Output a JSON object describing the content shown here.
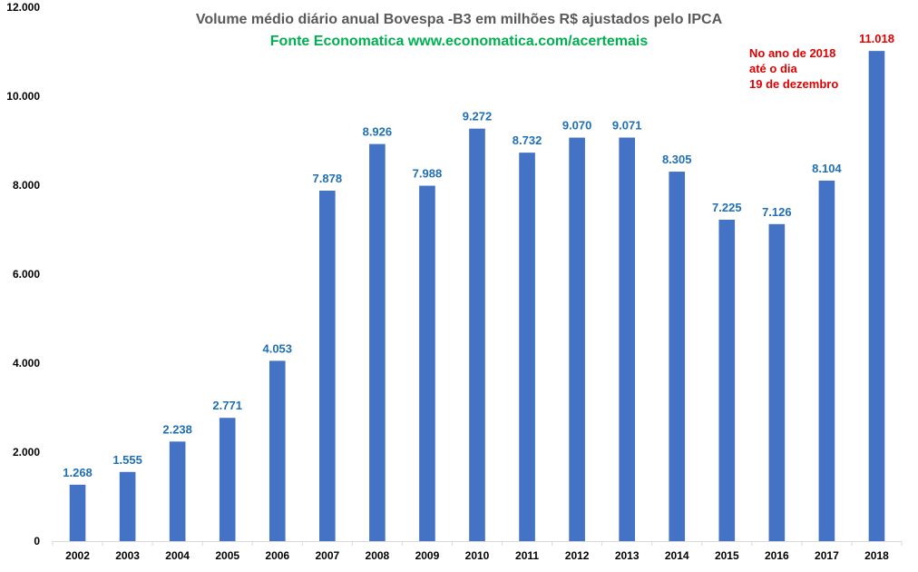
{
  "chart_data": {
    "type": "bar",
    "title": "Volume médio diário anual  Bovespa -B3 em milhões R$ ajustados pelo IPCA",
    "subtitle": "Fonte Economatica www.economatica.com/acertemais",
    "categories": [
      "2002",
      "2003",
      "2004",
      "2005",
      "2006",
      "2007",
      "2008",
      "2009",
      "2010",
      "2011",
      "2012",
      "2013",
      "2014",
      "2015",
      "2016",
      "2017",
      "2018"
    ],
    "values": [
      1268,
      1555,
      2238,
      2771,
      4053,
      7878,
      8926,
      7988,
      9272,
      8732,
      9070,
      9071,
      8305,
      7225,
      7126,
      8104,
      11018
    ],
    "value_labels": [
      "1.268",
      "1.555",
      "2.238",
      "2.771",
      "4.053",
      "7.878",
      "8.926",
      "7.988",
      "9.272",
      "8.732",
      "9.070",
      "9.071",
      "8.305",
      "7.225",
      "7.126",
      "8.104",
      "11.018"
    ],
    "highlight_index": 16,
    "ylim": [
      0,
      12000
    ],
    "yticks": [
      0,
      2000,
      4000,
      6000,
      8000,
      10000,
      12000
    ],
    "ytick_labels": [
      "0",
      "2.000",
      "4.000",
      "6.000",
      "8.000",
      "10.000",
      "12.000"
    ],
    "xlabel": "",
    "ylabel": "",
    "grid": false,
    "annotation": [
      "No ano de 2018",
      "até o dia",
      "19 de dezembro"
    ],
    "colors": {
      "bar": "#4472c4",
      "label": "#1f6fb4",
      "highlight_label": "#e00000",
      "title": "#595959",
      "subtitle": "#00b050",
      "annotation": "#e00000"
    }
  }
}
